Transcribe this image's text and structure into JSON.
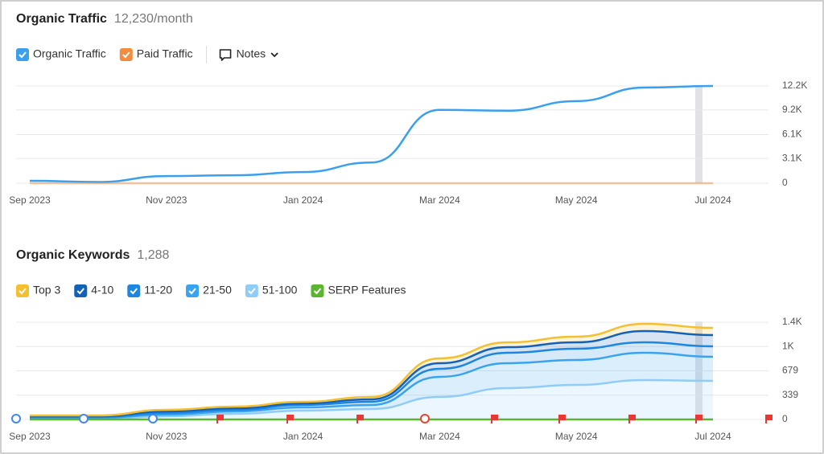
{
  "chart_data": [
    {
      "type": "line",
      "title": "Organic Traffic",
      "subtitle": "12,230/month",
      "categories": [
        "Sep 2023",
        null,
        "Nov 2023",
        null,
        "Jan 2024",
        null,
        "Mar 2024",
        null,
        "May 2024",
        null,
        "Jul 2024"
      ],
      "series": [
        {
          "name": "Organic Traffic",
          "color": "#3aa0ee",
          "values": [
            300,
            150,
            900,
            1000,
            1400,
            2600,
            9200,
            9100,
            10300,
            12000,
            12200
          ]
        },
        {
          "name": "Paid Traffic",
          "color": "#f58b3f",
          "values": [
            0,
            0,
            0,
            0,
            0,
            0,
            0,
            0,
            0,
            0,
            0
          ]
        }
      ],
      "ylim": [
        0,
        12200
      ],
      "yticks": [
        0,
        {
          "value": 3100,
          "label": "3.1K"
        },
        {
          "value": 6100,
          "label": "6.1K"
        },
        {
          "value": 9200,
          "label": "9.2K"
        },
        {
          "value": 12200,
          "label": "12.2K"
        }
      ],
      "grid": true,
      "notes_button": "Notes"
    },
    {
      "type": "line",
      "title": "Organic Keywords",
      "subtitle": "1,288",
      "stacked": true,
      "categories": [
        "Sep 2023",
        null,
        "Nov 2023",
        null,
        "Jan 2024",
        null,
        "Mar 2024",
        null,
        "May 2024",
        null,
        "Jul 2024"
      ],
      "series": [
        {
          "name": "Top 3",
          "color": "#f5bf32",
          "stack": true,
          "values": [
            11,
            11,
            23,
            23,
            23,
            33,
            68,
            67,
            79,
            101,
            101
          ]
        },
        {
          "name": "4-10",
          "color": "#1462b8",
          "stack": true,
          "values": [
            11,
            11,
            22,
            22,
            22,
            34,
            78,
            79,
            90,
            157,
            157
          ]
        },
        {
          "name": "11-20",
          "color": "#1d86e0",
          "stack": true,
          "values": [
            12,
            12,
            23,
            23,
            34,
            45,
            112,
            146,
            157,
            146,
            146
          ]
        },
        {
          "name": "21-50",
          "color": "#3aa3f0",
          "stack": true,
          "values": [
            11,
            11,
            22,
            33,
            45,
            56,
            281,
            347,
            348,
            381,
            336
          ]
        },
        {
          "name": "51-100",
          "color": "#8fcdf7",
          "stack": true,
          "values": [
            11,
            11,
            45,
            79,
            123,
            146,
            314,
            438,
            482,
            550,
            539
          ]
        },
        {
          "name": "SERP Features",
          "color": "#5cb531",
          "stack": false,
          "values": [
            0,
            0,
            0,
            0,
            0,
            0,
            0,
            0,
            0,
            0,
            0
          ]
        }
      ],
      "ylim": [
        0,
        1358
      ],
      "yticks": [
        0,
        339,
        679,
        {
          "value": 1018,
          "label": "1K"
        },
        {
          "value": 1358,
          "label": "1.4K"
        }
      ],
      "grid": true
    }
  ]
}
